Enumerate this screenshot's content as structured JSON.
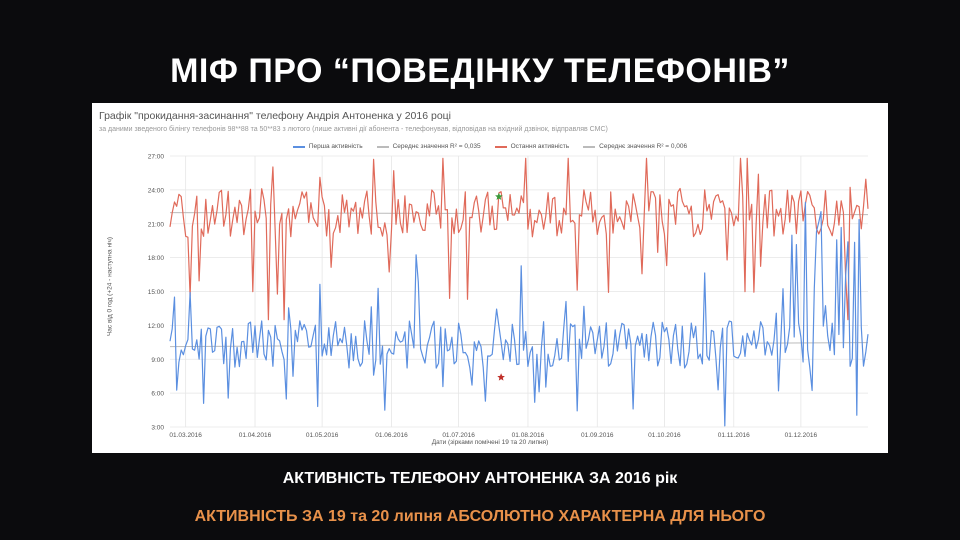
{
  "slide": {
    "title": "МІФ ПРО “ПОВЕДІНКУ ТЕЛЕФОНІВ”",
    "caption_1": "АКТИВНІСТЬ ТЕЛЕФОНУ АНТОНЕНКА ЗА 2016 рік",
    "caption_2": "АКТИВНІСТЬ ЗА  19 та 20 липня АБСОЛЮТНО ХАРАКТЕРНА ДЛЯ НЬОГО",
    "caption_2_color": "#e8914a"
  },
  "chart_data": {
    "type": "line",
    "title": "Графік \"прокидання-засинання\" телефону Андрія Антоненка у 2016 році",
    "subtitle": "за даними зведеного білінгу телефонів 98**88 та 50**83 з лютого  (лише активні дії абонента - телефонував, відповідав на вхідний дзвінок, відправляв СМС)",
    "ylabel": "Час від 0 год (+24 - наступна ніч)",
    "xlabel": "Дати (зірками помічені 19 та 20 липня)",
    "ylim": [
      3,
      27
    ],
    "y_ticks": [
      "3:00",
      "6:00",
      "9:00",
      "12:00",
      "15:00",
      "18:00",
      "21:00",
      "24:00",
      "27:00"
    ],
    "x_range": [
      "2016-02-23",
      "2016-12-31"
    ],
    "x_ticks": [
      "01.03.2016",
      "01.04.2016",
      "01.05.2016",
      "01.06.2016",
      "01.07.2016",
      "01.08.2016",
      "01.09.2016",
      "01.10.2016",
      "01.11.2016",
      "01.12.2016"
    ],
    "grid": true,
    "legend_position": "top",
    "series": [
      {
        "name": "Перша активність",
        "color": "#5b8fe0",
        "mean": 10.3
      },
      {
        "name": "Середнє значення R² = 0,035",
        "color": "#bbbbbb",
        "style": "trend"
      },
      {
        "name": "Остання активність",
        "color": "#e06a5a",
        "mean": 21.9
      },
      {
        "name": "Середнє значення R² = 0,006",
        "color": "#bbbbbb",
        "style": "trend"
      }
    ],
    "markers": [
      {
        "label": "19.07.2016",
        "series": "Остання активність",
        "value": 23.4,
        "color": "#3a9a3a",
        "symbol": "star"
      },
      {
        "label": "20.07.2016",
        "series": "Перша активність",
        "value": 7.4,
        "color": "#c0302a",
        "symbol": "star"
      }
    ]
  }
}
